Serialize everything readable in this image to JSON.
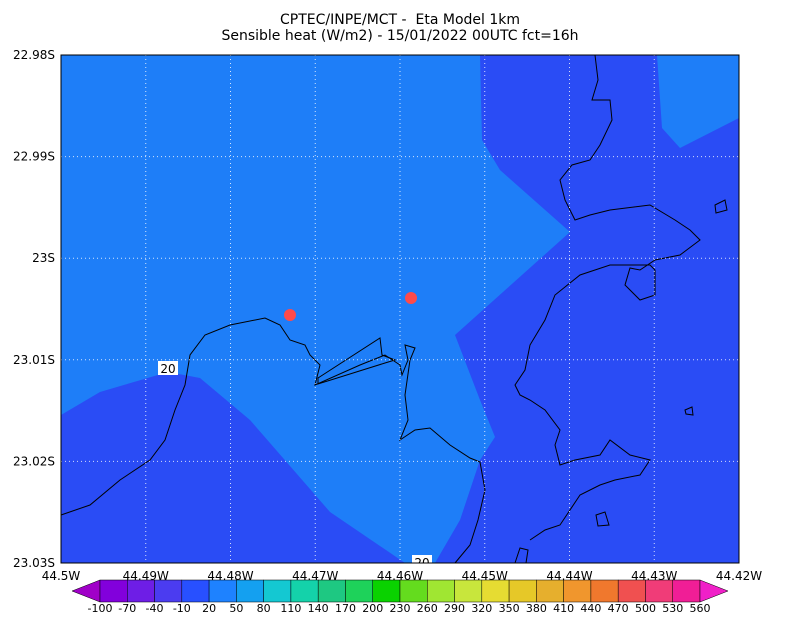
{
  "header": {
    "title_lines": [
      "CPTEC/INPE/MCT -  Eta Model 1km",
      "Sensible heat (W/m2) - 15/01/2022 00UTC fct=16h"
    ]
  },
  "x_axis": {
    "labels": [
      "44.5W",
      "44.49W",
      "44.48W",
      "44.47W",
      "44.46W",
      "44.45W",
      "44.44W",
      "44.43W",
      "44.42W"
    ]
  },
  "y_axis": {
    "labels": [
      "22.98S",
      "22.99S",
      "23S",
      "23.01S",
      "23.02S",
      "23.03S"
    ]
  },
  "colorbar": {
    "labels": [
      "-100",
      "-70",
      "-40",
      "-10",
      "20",
      "50",
      "80",
      "110",
      "140",
      "170",
      "200",
      "230",
      "260",
      "290",
      "320",
      "350",
      "380",
      "410",
      "440",
      "470",
      "500",
      "530",
      "560"
    ],
    "colors": [
      "#a000c8",
      "#8200dc",
      "#6e1ee6",
      "#4b3cf0",
      "#2850ff",
      "#1e82ff",
      "#14a0f0",
      "#14c8d2",
      "#14d2aa",
      "#1ec882",
      "#1ed25a",
      "#0ad200",
      "#64dc1e",
      "#a0e632",
      "#c8e63c",
      "#e6dc32",
      "#e6c828",
      "#e6af2d",
      "#f0962d",
      "#f0782d",
      "#f05050",
      "#f03c78",
      "#f01e96",
      "#f020c8"
    ]
  },
  "contour_labels": [
    "20",
    "20"
  ]
}
